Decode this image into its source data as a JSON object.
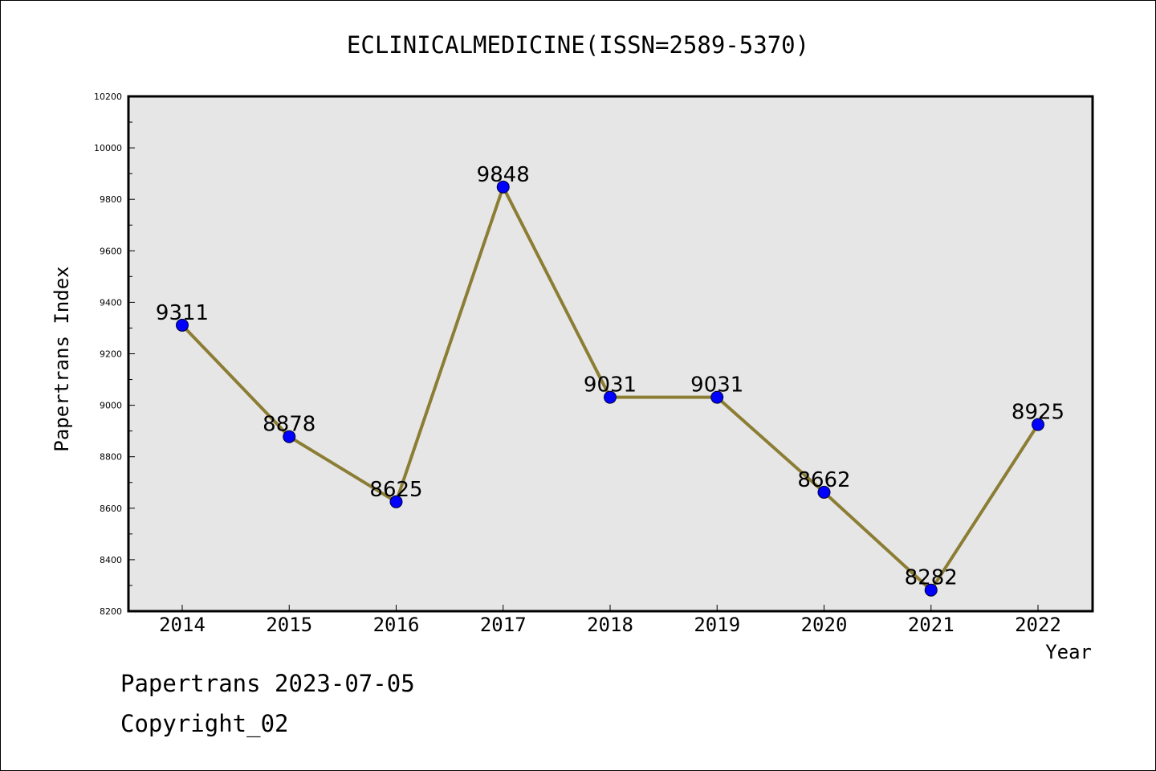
{
  "chart_data": {
    "type": "line",
    "title": "ECLINICALMEDICINE(ISSN=2589-5370)",
    "xlabel": "Year",
    "ylabel": "Papertrans Index",
    "categories": [
      "2014",
      "2015",
      "2016",
      "2017",
      "2018",
      "2019",
      "2020",
      "2021",
      "2022"
    ],
    "values": [
      9311,
      8878,
      8625,
      9848,
      9031,
      9031,
      8662,
      8282,
      8925
    ],
    "ylim": [
      8200,
      10200
    ],
    "yticks": [
      "8200",
      "8400",
      "8600",
      "8800",
      "9000",
      "9200",
      "9400",
      "9600",
      "9800",
      "10000",
      "10200"
    ],
    "grid": false,
    "colors": {
      "line": "#8c7d35",
      "marker": "#0000ff",
      "plot_bg": "#e6e6e6"
    }
  },
  "footer": {
    "stamp": "Papertrans 2023-07-05",
    "copyright": "Copyright_02"
  }
}
